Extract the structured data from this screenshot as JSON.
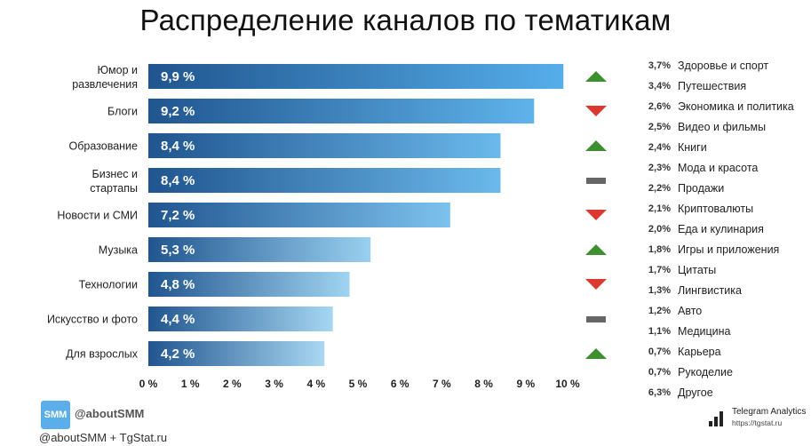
{
  "title": "Распределение каналов по тематикам",
  "chart_data": {
    "type": "bar",
    "orientation": "horizontal",
    "title": "Распределение каналов по тематикам",
    "categories": [
      [
        "Юмор и",
        "развлечения"
      ],
      [
        "Блоги"
      ],
      [
        "Образование"
      ],
      [
        "Бизнес и",
        "стартапы"
      ],
      [
        "Новости и СМИ"
      ],
      [
        "Музыка"
      ],
      [
        "Технологии"
      ],
      [
        "Искусство и фото"
      ],
      [
        "Для взрослых"
      ]
    ],
    "values": [
      9.9,
      9.2,
      8.4,
      8.4,
      7.2,
      5.3,
      4.8,
      4.4,
      4.2
    ],
    "value_labels": [
      "9,9 %",
      "9,2 %",
      "8,4 %",
      "8,4 %",
      "7,2 %",
      "5,3 %",
      "4,8 %",
      "4,4 %",
      "4,2 %"
    ],
    "trends": [
      "up",
      "down",
      "up",
      "flat",
      "down",
      "up",
      "down",
      "flat",
      "up"
    ],
    "xlim": [
      0,
      10
    ],
    "x_ticks": [
      "0 %",
      "1 %",
      "2 %",
      "3 %",
      "4 %",
      "5 %",
      "6 %",
      "7 %",
      "8 %",
      "9 %",
      "10 %"
    ],
    "grid": false,
    "colors": {
      "bar_dark": "#20558f",
      "bar_light_high": "#55aeea",
      "bar_light_low": "#a9d8f2",
      "trend_up": "#3d8f2f",
      "trend_down": "#d9392f",
      "trend_flat": "#666666"
    }
  },
  "other_topics": [
    {
      "value": "3,7%",
      "name": "Здоровье и спорт"
    },
    {
      "value": "3,4%",
      "name": "Путешествия"
    },
    {
      "value": "2,6%",
      "name": "Экономика и политика"
    },
    {
      "value": "2,5%",
      "name": "Видео и фильмы"
    },
    {
      "value": "2,4%",
      "name": "Книги"
    },
    {
      "value": "2,3%",
      "name": "Мода и красота"
    },
    {
      "value": "2,2%",
      "name": "Продажи"
    },
    {
      "value": "2,1%",
      "name": "Криптовалюты"
    },
    {
      "value": "2,0%",
      "name": "Еда и кулинария"
    },
    {
      "value": "1,8%",
      "name": "Игры и приложения"
    },
    {
      "value": "1,7%",
      "name": "Цитаты"
    },
    {
      "value": "1,3%",
      "name": "Лингвистика"
    },
    {
      "value": "1,2%",
      "name": "Авто"
    },
    {
      "value": "1,1%",
      "name": "Медицина"
    },
    {
      "value": "0,7%",
      "name": "Карьера"
    },
    {
      "value": "0,7%",
      "name": "Рукоделие"
    },
    {
      "value": "6,3%",
      "name": "Другое"
    }
  ],
  "brand": {
    "logo_text": "SMM",
    "handle": "@aboutSMM",
    "logo_color": "#5aaeea"
  },
  "source": "@aboutSMM + TgStat.ru",
  "analytics": {
    "icon": "bar-chart-icon",
    "name": "Telegram Analytics",
    "url": "https://tgstat.ru"
  }
}
